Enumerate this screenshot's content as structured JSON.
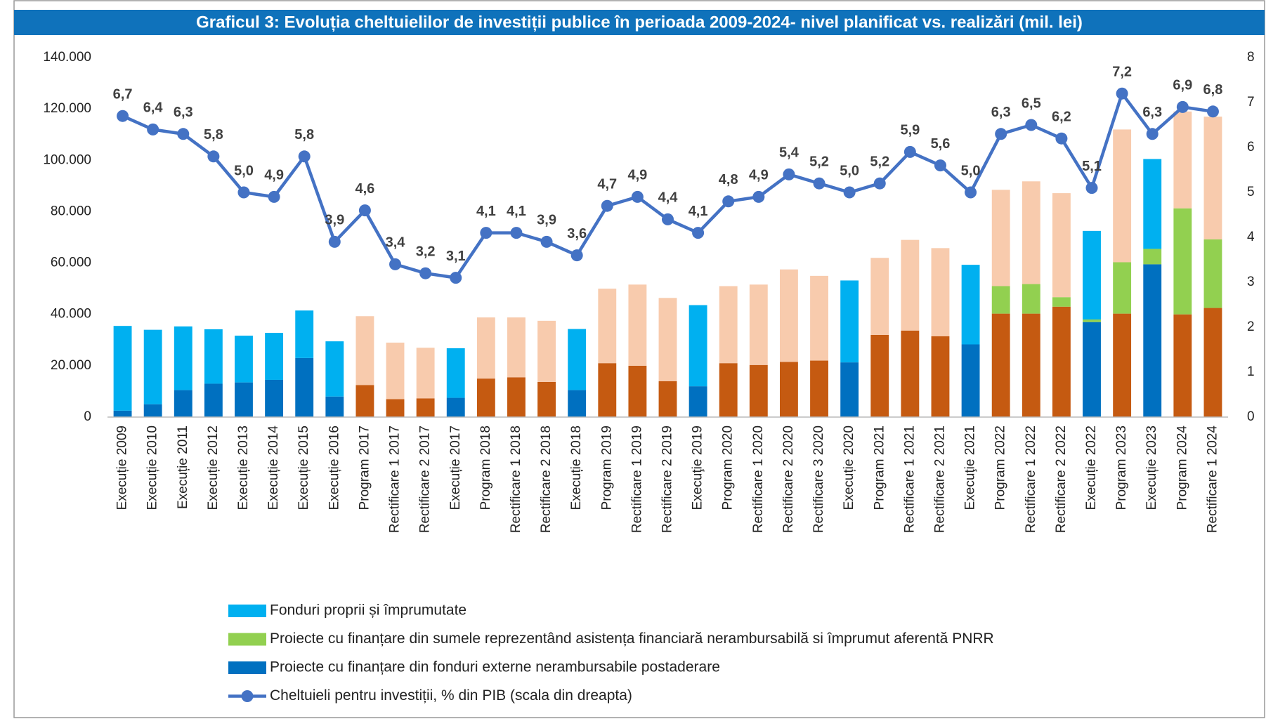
{
  "chart_data": {
    "type": "stacked_bar_line",
    "title": "Graficul 3: Evoluția cheltuielilor de investiții publice în perioada 2009-2024- nivel planificat vs. realizări (mil. lei)",
    "categories": [
      "Execuție 2009",
      "Execuție 2010",
      "Execuție 2011",
      "Execuție 2012",
      "Execuție 2013",
      "Execuție 2014",
      "Execuție 2015",
      "Execuție 2016",
      "Program 2017",
      "Rectificare 1 2017",
      "Rectificare 2 2017",
      "Execuție 2017",
      "Program 2018",
      "Rectificare 1 2018",
      "Rectificare 2 2018",
      "Execuție 2018",
      "Program 2019",
      "Rectificare 1 2019",
      "Rectificare 2 2019",
      "Execuţie 2019",
      "Program 2020",
      "Rectificare 1 2020",
      "Rectificare 2 2020",
      "Rectificare 3 2020",
      "Execuție 2020",
      "Program 2021",
      "Rectificare 1 2021",
      "Rectificare 2 2021",
      "Execuţie 2021",
      "Program 2022",
      "Rectificare 1 2022",
      "Rectificare 2 2022",
      "Execuție 2022",
      "Program 2023",
      "Execuție 2023",
      "Program 2024",
      "Rectificare 1 2024"
    ],
    "series": [
      {
        "name": "Fonduri proprii și împrumutate",
        "color": "#00b0f0",
        "colors": [
          "#00b0f0",
          "#00b0f0",
          "#00b0f0",
          "#00b0f0",
          "#00b0f0",
          "#00b0f0",
          "#00b0f0",
          "#00b0f0",
          "#f8cbad",
          "#f8cbad",
          "#f8cbad",
          "#00b0f0",
          "#f8cbad",
          "#f8cbad",
          "#f8cbad",
          "#00b0f0",
          "#f8cbad",
          "#f8cbad",
          "#f8cbad",
          "#00b0f0",
          "#f8cbad",
          "#f8cbad",
          "#f8cbad",
          "#f8cbad",
          "#00b0f0",
          "#f8cbad",
          "#f8cbad",
          "#f8cbad",
          "#00b0f0",
          "#f8cbad",
          "#f8cbad",
          "#f8cbad",
          "#00b0f0",
          "#f8cbad",
          "#00b0f0",
          "#f8cbad",
          "#f8cbad"
        ],
        "values": [
          33000,
          29000,
          24800,
          21200,
          18200,
          18300,
          18500,
          21500,
          26800,
          22000,
          19700,
          19300,
          23800,
          23300,
          23800,
          23800,
          29000,
          31600,
          32400,
          31600,
          30000,
          31300,
          36000,
          33000,
          31900,
          30000,
          35300,
          34300,
          31000,
          37500,
          40000,
          40500,
          34500,
          51700,
          35000,
          37700,
          47800
        ]
      },
      {
        "name": "Proiecte cu finanțare din sumele reprezentând asistența financiară nerambursabilă si împrumut aferentă PNRR",
        "color": "#92d050",
        "values": [
          0,
          0,
          0,
          0,
          0,
          0,
          0,
          0,
          0,
          0,
          0,
          0,
          0,
          0,
          0,
          0,
          0,
          0,
          0,
          0,
          0,
          0,
          0,
          0,
          0,
          0,
          0,
          0,
          0,
          10700,
          11500,
          3700,
          1000,
          20000,
          6000,
          41300,
          26700
        ]
      },
      {
        "name": "Proiecte cu finanțare din fonduri externe nerambursabile postaderare",
        "color": "#0070c0",
        "colors": [
          "#0070c0",
          "#0070c0",
          "#0070c0",
          "#0070c0",
          "#0070c0",
          "#0070c0",
          "#0070c0",
          "#0070c0",
          "#c55a11",
          "#c55a11",
          "#c55a11",
          "#0070c0",
          "#c55a11",
          "#c55a11",
          "#c55a11",
          "#0070c0",
          "#c55a11",
          "#c55a11",
          "#c55a11",
          "#0070c0",
          "#c55a11",
          "#c55a11",
          "#c55a11",
          "#c55a11",
          "#0070c0",
          "#c55a11",
          "#c55a11",
          "#c55a11",
          "#0070c0",
          "#c55a11",
          "#c55a11",
          "#c55a11",
          "#0070c0",
          "#c55a11",
          "#0070c0",
          "#c55a11",
          "#c55a11"
        ],
        "values": [
          2500,
          5000,
          10500,
          13000,
          13500,
          14500,
          23000,
          8000,
          12500,
          7000,
          7300,
          7500,
          15000,
          15500,
          13700,
          10500,
          21000,
          20000,
          14000,
          12000,
          21000,
          20300,
          21500,
          22000,
          21300,
          32000,
          33700,
          31500,
          28300,
          40300,
          40300,
          43000,
          37000,
          40300,
          59500,
          40000,
          42500
        ]
      },
      {
        "name": "Cheltuieli pentru investiții, % din PIB (scala din dreapta)",
        "color": "#4472c4",
        "axis": "y2",
        "kind": "line",
        "values": [
          6.7,
          6.4,
          6.3,
          5.8,
          5.0,
          4.9,
          5.8,
          3.9,
          4.6,
          3.4,
          3.2,
          3.1,
          4.1,
          4.1,
          3.9,
          3.6,
          4.7,
          4.9,
          4.4,
          4.1,
          4.8,
          4.9,
          5.4,
          5.2,
          5.0,
          5.2,
          5.9,
          5.6,
          5.0,
          6.3,
          6.5,
          6.2,
          5.1,
          7.2,
          6.3,
          6.9,
          6.8
        ],
        "value_labels": [
          "6,7",
          "6,4",
          "6,3",
          "5,8",
          "5,0",
          "4,9",
          "5,8",
          "3,9",
          "4,6",
          "3,4",
          "3,2",
          "3,1",
          "4,1",
          "4,1",
          "3,9",
          "3,6",
          "4,7",
          "4,9",
          "4,4",
          "4,1",
          "4,8",
          "4,9",
          "5,4",
          "5,2",
          "5,0",
          "5,2",
          "5,9",
          "5,6",
          "5,0",
          "6,3",
          "6,5",
          "6,2",
          "5,1",
          "7,2",
          "6,3",
          "6,9",
          "6,8"
        ]
      }
    ],
    "ylim": [
      0,
      140000
    ],
    "yticks": [
      0,
      {
        "value": 20000,
        "label": "20.000"
      },
      {
        "value": 40000,
        "label": "40.000"
      },
      {
        "value": 60000,
        "label": "60.000"
      },
      {
        "value": 80000,
        "label": "80.000"
      },
      {
        "value": 100000,
        "label": "100.000"
      },
      {
        "value": 120000,
        "label": "120.000"
      },
      {
        "value": 140000,
        "label": "140.000"
      }
    ],
    "y2lim": [
      0,
      8
    ],
    "y2ticks": [
      0,
      1,
      2,
      3,
      4,
      5,
      6,
      7,
      8
    ],
    "grid": false
  }
}
